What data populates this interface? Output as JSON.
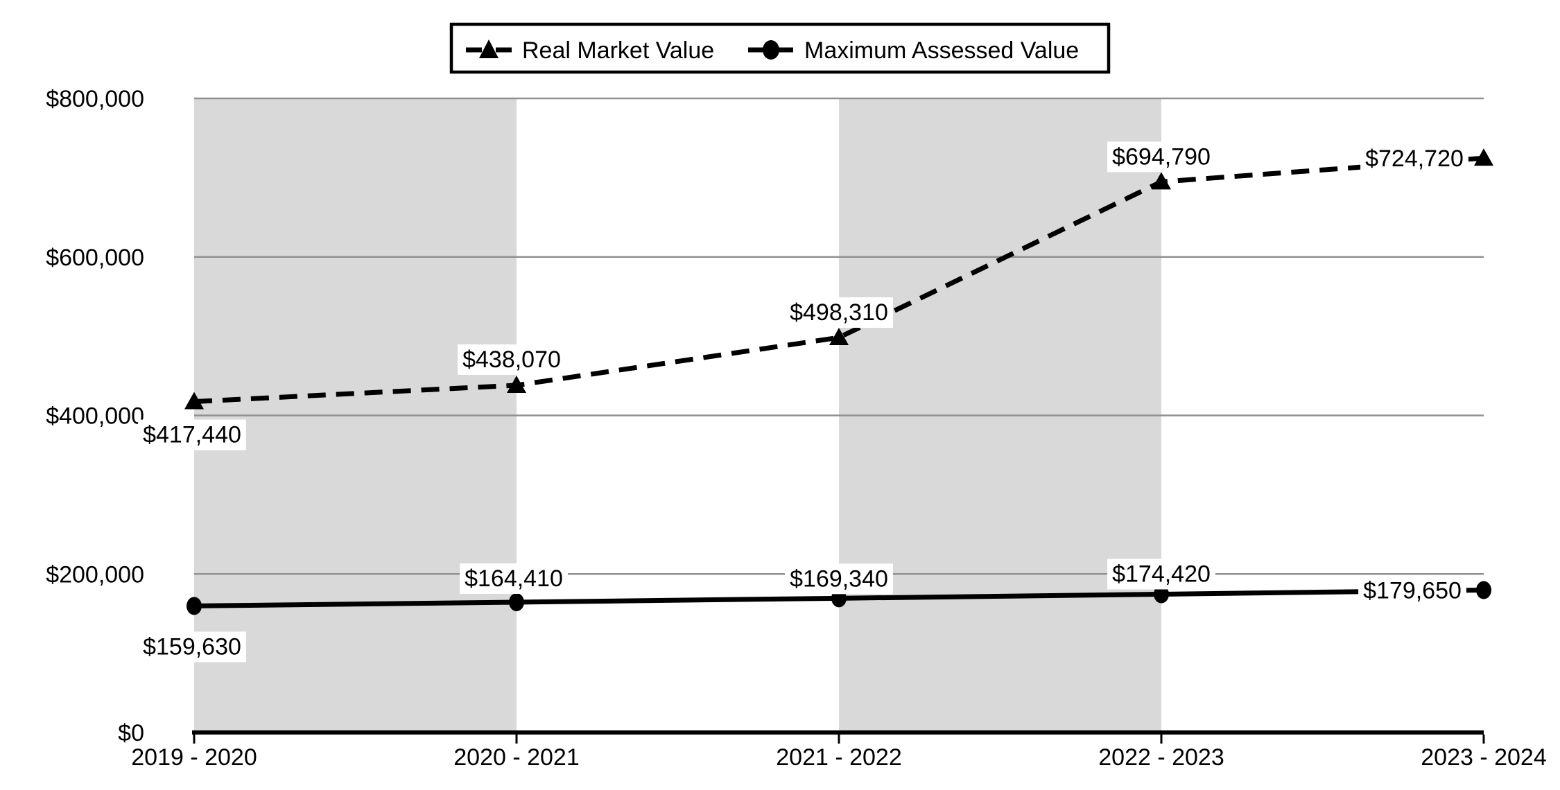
{
  "chart_data": {
    "type": "line",
    "title": "",
    "categories": [
      "2019 - 2020",
      "2020 - 2021",
      "2021 - 2022",
      "2022 - 2023",
      "2023 - 2024"
    ],
    "series": [
      {
        "name": "Real Market Value",
        "line_style": "dashed",
        "marker": "triangle",
        "color": "#000000",
        "values": [
          417440,
          438070,
          498310,
          694790,
          724720
        ],
        "point_labels": [
          "$417,440",
          "$438,070",
          "$498,310",
          "$694,790",
          "$724,720"
        ]
      },
      {
        "name": "Maximum Assessed Value",
        "line_style": "solid",
        "marker": "circle",
        "color": "#000000",
        "values": [
          159630,
          164410,
          169340,
          174420,
          179650
        ],
        "point_labels": [
          "$159,630",
          "$164,410",
          "$169,340",
          "$174,420",
          "$179,650"
        ]
      }
    ],
    "x_axis": {
      "tick_labels": [
        "2019 - 2020",
        "2020 - 2021",
        "2021 - 2022",
        "2022 - 2023",
        "2023 - 2024"
      ]
    },
    "y_axis": {
      "min": 0,
      "max": 800000,
      "tick_interval": 200000,
      "tick_labels": [
        "$0",
        "$200,000",
        "$400,000",
        "$600,000",
        "$800,000"
      ]
    },
    "legend": {
      "position": "top-center",
      "entries": [
        "Real Market Value",
        "Maximum Assessed Value"
      ]
    },
    "style": {
      "background": "#FFFFFF",
      "band_color": "#D9D9D9",
      "gridline_color": "#919191",
      "axis_color": "#000000",
      "text_color": "#000000",
      "data_label_background": "#FFFFFF",
      "banded_column_gaps": [
        0,
        2
      ],
      "grid": "horizontal"
    },
    "layout_hints": {
      "legend_border": true,
      "label_offsets": [
        [
          [
            -3,
            47
          ],
          [
            -7,
            -38
          ],
          [
            0,
            -37
          ],
          [
            0,
            -37
          ],
          [
            -100,
            0
          ]
        ],
        [
          [
            -3,
            58
          ],
          [
            -4,
            -35
          ],
          [
            0,
            -29
          ],
          [
            0,
            -30
          ],
          [
            -103,
            0
          ]
        ]
      ]
    }
  }
}
